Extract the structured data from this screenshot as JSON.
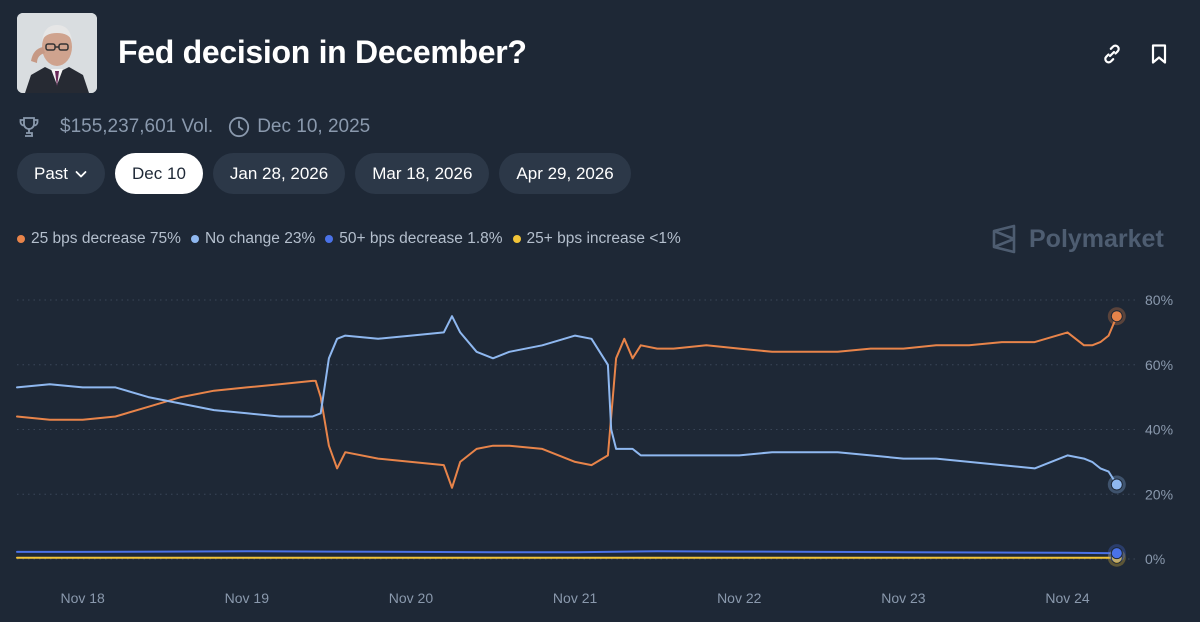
{
  "header": {
    "title": "Fed decision in December?",
    "volume": "$155,237,601 Vol.",
    "end_date": "Dec 10, 2025"
  },
  "tabs": [
    {
      "label": "Past"
    },
    {
      "label": "Dec 10"
    },
    {
      "label": "Jan 28, 2026"
    },
    {
      "label": "Mar 18, 2026"
    },
    {
      "label": "Apr 29, 2026"
    }
  ],
  "brand": {
    "name": "Polymarket"
  },
  "icons": {
    "trophy": "trophy-icon",
    "clock": "clock-icon",
    "link": "link-icon",
    "bookmark": "bookmark-icon",
    "chevron": "chevron-down-icon"
  },
  "colors": {
    "background": "#1e2836",
    "orange": "#e8844a",
    "light_blue": "#8fb8f0",
    "blue": "#4a72e8",
    "yellow": "#f2c438",
    "grid": "#3a4658",
    "axis_text": "#8a99ad"
  },
  "chart_data": {
    "type": "line",
    "title": "Fed decision in December?",
    "x_ticks": [
      "Nov 18",
      "Nov 19",
      "Nov 20",
      "Nov 21",
      "Nov 22",
      "Nov 23",
      "Nov 24"
    ],
    "xlim": [
      17.6,
      24.35
    ],
    "y_ticks": [
      0,
      20,
      40,
      60,
      80
    ],
    "y_tick_labels": [
      "0%",
      "20%",
      "40%",
      "60%",
      "80%"
    ],
    "ylim": [
      0,
      80
    ],
    "grid": "horizontal-dotted",
    "legend_position": "top-left",
    "series": [
      {
        "name": "25 bps decrease",
        "legend_label": "25 bps decrease 75%",
        "current": 75,
        "color": "#e8844a",
        "x": [
          17.6,
          17.8,
          18.0,
          18.2,
          18.4,
          18.6,
          18.8,
          19.0,
          19.2,
          19.4,
          19.42,
          19.45,
          19.5,
          19.55,
          19.6,
          19.8,
          20.0,
          20.2,
          20.25,
          20.3,
          20.4,
          20.5,
          20.6,
          20.8,
          21.0,
          21.1,
          21.2,
          21.22,
          21.25,
          21.3,
          21.35,
          21.4,
          21.5,
          21.6,
          21.8,
          22.0,
          22.2,
          22.4,
          22.6,
          22.8,
          23.0,
          23.2,
          23.4,
          23.6,
          23.8,
          24.0,
          24.1,
          24.15,
          24.2,
          24.25,
          24.3
        ],
        "values": [
          44,
          43,
          43,
          44,
          47,
          50,
          52,
          53,
          54,
          55,
          55,
          50,
          35,
          28,
          33,
          31,
          30,
          29,
          22,
          30,
          34,
          35,
          35,
          34,
          30,
          29,
          32,
          44,
          62,
          68,
          62,
          66,
          65,
          65,
          66,
          65,
          64,
          64,
          64,
          65,
          65,
          66,
          66,
          67,
          67,
          70,
          66,
          66,
          67,
          69,
          75
        ]
      },
      {
        "name": "No change",
        "legend_label": "No change 23%",
        "current": 23,
        "color": "#8fb8f0",
        "x": [
          17.6,
          17.8,
          18.0,
          18.2,
          18.4,
          18.6,
          18.8,
          19.0,
          19.2,
          19.4,
          19.45,
          19.5,
          19.55,
          19.6,
          19.8,
          20.0,
          20.2,
          20.25,
          20.3,
          20.4,
          20.5,
          20.6,
          20.8,
          21.0,
          21.1,
          21.2,
          21.22,
          21.25,
          21.3,
          21.35,
          21.4,
          21.5,
          21.6,
          21.8,
          22.0,
          22.2,
          22.4,
          22.6,
          22.8,
          23.0,
          23.2,
          23.4,
          23.6,
          23.8,
          24.0,
          24.1,
          24.15,
          24.2,
          24.25,
          24.3
        ],
        "values": [
          53,
          54,
          53,
          53,
          50,
          48,
          46,
          45,
          44,
          44,
          45,
          62,
          68,
          69,
          68,
          69,
          70,
          75,
          70,
          64,
          62,
          64,
          66,
          69,
          68,
          60,
          40,
          34,
          34,
          34,
          32,
          32,
          32,
          32,
          32,
          33,
          33,
          33,
          32,
          31,
          31,
          30,
          29,
          28,
          32,
          31,
          30,
          28,
          27,
          23
        ]
      },
      {
        "name": "50+ bps decrease",
        "legend_label": "50+ bps decrease 1.8%",
        "current": 1.8,
        "color": "#4a72e8",
        "x": [
          17.6,
          18.0,
          18.5,
          19.0,
          19.5,
          20.0,
          20.5,
          21.0,
          21.5,
          22.0,
          22.5,
          23.0,
          23.5,
          24.0,
          24.3
        ],
        "values": [
          2.2,
          2.2,
          2.3,
          2.4,
          2.3,
          2.2,
          2.1,
          2.1,
          2.4,
          2.3,
          2.2,
          2.1,
          2.0,
          1.9,
          1.8
        ]
      },
      {
        "name": "25+ bps increase",
        "legend_label": "25+ bps increase <1%",
        "current": 0.4,
        "color": "#f2c438",
        "x": [
          17.6,
          24.3
        ],
        "values": [
          0.4,
          0.4
        ]
      }
    ]
  }
}
